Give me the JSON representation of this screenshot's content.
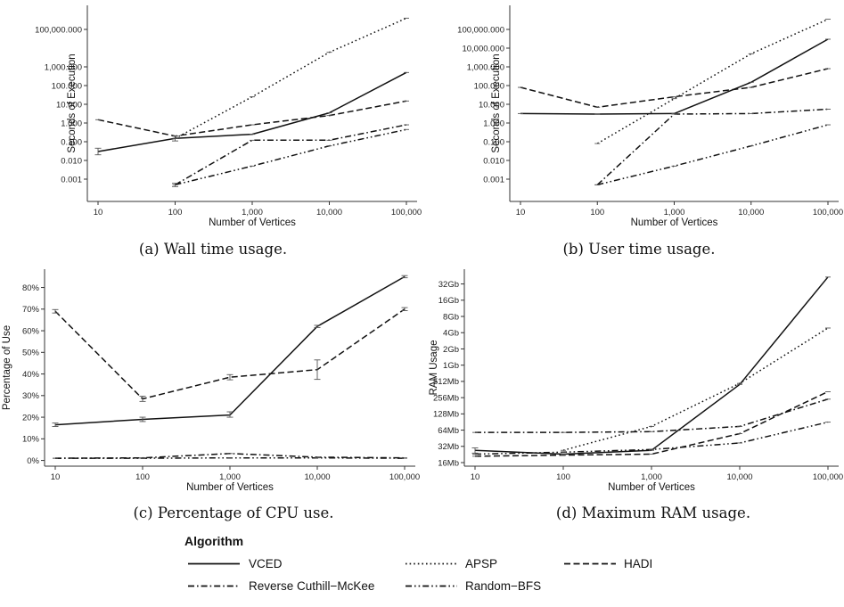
{
  "chart_data": [
    {
      "id": "a",
      "type": "line",
      "caption": "(a) Wall time usage.",
      "xlabel": "Number of Vertices",
      "ylabel": "Seconds of Execution",
      "scale": "log",
      "x": [
        10,
        100,
        1000,
        10000,
        100000
      ],
      "x_tick_labels": [
        "10",
        "100",
        "1,000",
        "10,000",
        "100,000"
      ],
      "y_ticks": [
        0.001,
        0.01,
        0.1,
        1,
        10,
        100,
        1000,
        100000
      ],
      "y_tick_labels": [
        "0.001",
        "0.010",
        "0.100",
        "1.000",
        "10.000",
        "100.000",
        "1,000.000",
        "100,000.000"
      ],
      "ylim": [
        0.0001,
        1000000
      ],
      "series": [
        {
          "name": "VCED",
          "values": [
            0.03,
            0.15,
            0.25,
            3.5,
            500
          ],
          "err": [
            [
              0.02,
              0.045
            ],
            [
              0.11,
              0.2
            ],
            null,
            null,
            null
          ]
        },
        {
          "name": "APSP",
          "values": [
            null,
            0.15,
            25,
            6000,
            400000
          ],
          "err": [
            null,
            null,
            null,
            null,
            null
          ]
        },
        {
          "name": "HADI",
          "values": [
            1.5,
            0.2,
            0.8,
            2.5,
            15
          ],
          "err": [
            null,
            null,
            null,
            null,
            null
          ]
        },
        {
          "name": "Reverse Cuthill−McKee",
          "values": [
            null,
            0.0005,
            0.12,
            0.12,
            0.8
          ],
          "err": [
            null,
            [
              0.0004,
              0.0006
            ],
            null,
            null,
            null
          ]
        },
        {
          "name": "Random−BFS",
          "values": [
            null,
            0.0005,
            0.005,
            0.06,
            0.45
          ],
          "err": [
            null,
            null,
            null,
            null,
            null
          ]
        }
      ]
    },
    {
      "id": "b",
      "type": "line",
      "caption": "(b) User time usage.",
      "xlabel": "Number of Vertices",
      "ylabel": "Seconds of Execution",
      "scale": "log",
      "x": [
        10,
        100,
        1000,
        10000,
        100000
      ],
      "x_tick_labels": [
        "10",
        "100",
        "1,000",
        "10,000",
        "100,000"
      ],
      "y_ticks": [
        0.001,
        0.01,
        0.1,
        1,
        10,
        100,
        1000,
        10000,
        100000
      ],
      "y_tick_labels": [
        "0.001",
        "0.010",
        "0.100",
        "1.000",
        "10.000",
        "100.000",
        "1,000.000",
        "10,000.000",
        "100,000.000"
      ],
      "ylim": [
        0.0001,
        1000000
      ],
      "series": [
        {
          "name": "VCED",
          "values": [
            3.2,
            3.0,
            3.2,
            150,
            30000
          ],
          "err": [
            null,
            null,
            null,
            null,
            null
          ]
        },
        {
          "name": "APSP",
          "values": [
            null,
            0.08,
            20,
            5000,
            350000
          ],
          "err": [
            null,
            null,
            null,
            null,
            null
          ]
        },
        {
          "name": "HADI",
          "values": [
            80,
            7,
            25,
            80,
            800
          ],
          "err": [
            null,
            null,
            null,
            null,
            null
          ]
        },
        {
          "name": "Reverse Cuthill−McKee",
          "values": [
            null,
            0.0005,
            3.0,
            3.2,
            5.5
          ],
          "err": [
            null,
            null,
            null,
            null,
            null
          ]
        },
        {
          "name": "Random−BFS",
          "values": [
            null,
            0.0005,
            0.005,
            0.06,
            0.8
          ],
          "err": [
            null,
            null,
            null,
            null,
            null
          ]
        }
      ]
    },
    {
      "id": "c",
      "type": "line",
      "caption": "(c) Percentage of CPU use.",
      "xlabel": "Number of Vertices",
      "ylabel": "Percentage of Use",
      "scale": "linear",
      "x": [
        10,
        100,
        1000,
        10000,
        100000
      ],
      "x_tick_labels": [
        "10",
        "100",
        "1,000",
        "10,000",
        "100,000"
      ],
      "y_ticks": [
        0,
        10,
        20,
        30,
        40,
        50,
        60,
        70,
        80
      ],
      "y_tick_labels": [
        "0%",
        "10%",
        "20%",
        "30%",
        "40%",
        "50%",
        "60%",
        "70%",
        "80%"
      ],
      "ylim": [
        -1,
        86
      ],
      "series": [
        {
          "name": "VCED",
          "values": [
            16.5,
            19,
            21,
            62,
            85
          ],
          "err": [
            [
              15.7,
              17.3
            ],
            [
              18,
              20
            ],
            [
              20,
              22.5
            ],
            [
              61.5,
              62.5
            ],
            [
              84.5,
              85.5
            ]
          ]
        },
        {
          "name": "HADI",
          "values": [
            69,
            28.5,
            38.5,
            42,
            70
          ],
          "err": [
            [
              68.2,
              69.8
            ],
            [
              27.3,
              29.7
            ],
            [
              37.3,
              39.7
            ],
            [
              37.5,
              46.5
            ],
            [
              69.3,
              70.7
            ]
          ]
        },
        {
          "name": "Reverse Cuthill−McKee",
          "values": [
            1.0,
            1.2,
            3.2,
            1.5,
            1.2
          ],
          "err": [
            null,
            null,
            null,
            null,
            null
          ]
        },
        {
          "name": "Random−BFS",
          "values": [
            1.0,
            1.0,
            1.2,
            1.2,
            1.0
          ],
          "err": [
            null,
            null,
            null,
            null,
            null
          ]
        }
      ]
    },
    {
      "id": "d",
      "type": "line",
      "caption": "(d) Maximum RAM usage.",
      "xlabel": "Number of Vertices",
      "ylabel": "RAM Usage",
      "scale": "log2",
      "x": [
        10,
        100,
        1000,
        10000,
        100000
      ],
      "x_tick_labels": [
        "10",
        "100",
        "1,000",
        "10,000",
        "100,000"
      ],
      "y_ticks": [
        16,
        32,
        64,
        128,
        256,
        512,
        1024,
        2048,
        4096,
        8192,
        16384,
        32768
      ],
      "y_tick_labels": [
        "16Mb",
        "32Mb",
        "64Mb",
        "128Mb",
        "256Mb",
        "512Mb",
        "1Gb",
        "2Gb",
        "4Gb",
        "8Gb",
        "16Gb",
        "32Gb"
      ],
      "ylim": [
        16,
        49000
      ],
      "series": [
        {
          "name": "VCED",
          "values": [
            27,
            23,
            27,
            450,
            44000
          ],
          "err": [
            [
              24,
              30
            ],
            null,
            null,
            null,
            null
          ]
        },
        {
          "name": "APSP",
          "values": [
            null,
            27,
            75,
            470,
            5000
          ],
          "err": [
            null,
            null,
            null,
            null,
            null
          ]
        },
        {
          "name": "HADI",
          "values": [
            21,
            22,
            23,
            55,
            330
          ],
          "err": [
            null,
            null,
            null,
            null,
            null
          ]
        },
        {
          "name": "Reverse Cuthill−McKee",
          "values": [
            58,
            58,
            60,
            75,
            240
          ],
          "err": [
            null,
            null,
            null,
            null,
            null
          ]
        },
        {
          "name": "Random−BFS",
          "values": [
            23,
            25,
            28,
            37,
            90
          ],
          "err": [
            null,
            null,
            null,
            null,
            null
          ]
        }
      ]
    }
  ],
  "legend": {
    "title": "Algorithm",
    "items": [
      {
        "name": "VCED",
        "dash": "solid"
      },
      {
        "name": "APSP",
        "dash": "dotted"
      },
      {
        "name": "HADI",
        "dash": "dashed"
      },
      {
        "name": "Reverse Cuthill−McKee",
        "dash": "dashdot"
      },
      {
        "name": "Random−BFS",
        "dash": "dashdotdot"
      }
    ]
  }
}
